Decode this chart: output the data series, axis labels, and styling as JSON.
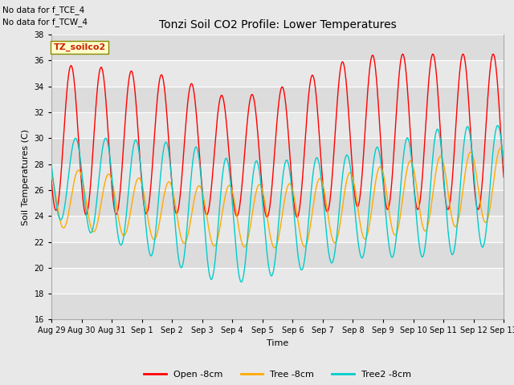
{
  "title": "Tonzi Soil CO2 Profile: Lower Temperatures",
  "ylabel": "Soil Temperatures (C)",
  "xlabel": "Time",
  "watermark_text": "TZ_soilco2",
  "note_line1": "No data for f_TCE_4",
  "note_line2": "No data for f_TCW_4",
  "ylim": [
    16,
    38
  ],
  "yticks": [
    16,
    18,
    20,
    22,
    24,
    26,
    28,
    30,
    32,
    34,
    36,
    38
  ],
  "legend_labels": [
    "Open -8cm",
    "Tree -8cm",
    "Tree2 -8cm"
  ],
  "line_colors": [
    "#ff0000",
    "#ffaa00",
    "#00cccc"
  ],
  "bg_color": "#e8e8e8",
  "plot_bg_color": "#ebebeb",
  "x_start_day": 0,
  "x_end_day": 15,
  "n_points": 1500,
  "xtick_positions": [
    0,
    1,
    2,
    3,
    4,
    5,
    6,
    7,
    8,
    9,
    10,
    11,
    12,
    13,
    14,
    15
  ],
  "xtick_labels": [
    "Aug 29",
    "Aug 30",
    "Aug 31",
    "Sep 1",
    "Sep 2",
    "Sep 3",
    "Sep 4",
    "Sep 5",
    "Sep 6",
    "Sep 7",
    "Sep 8",
    "Sep 9",
    "Sep 10",
    "Sep 11",
    "Sep 12",
    "Sep 13"
  ]
}
